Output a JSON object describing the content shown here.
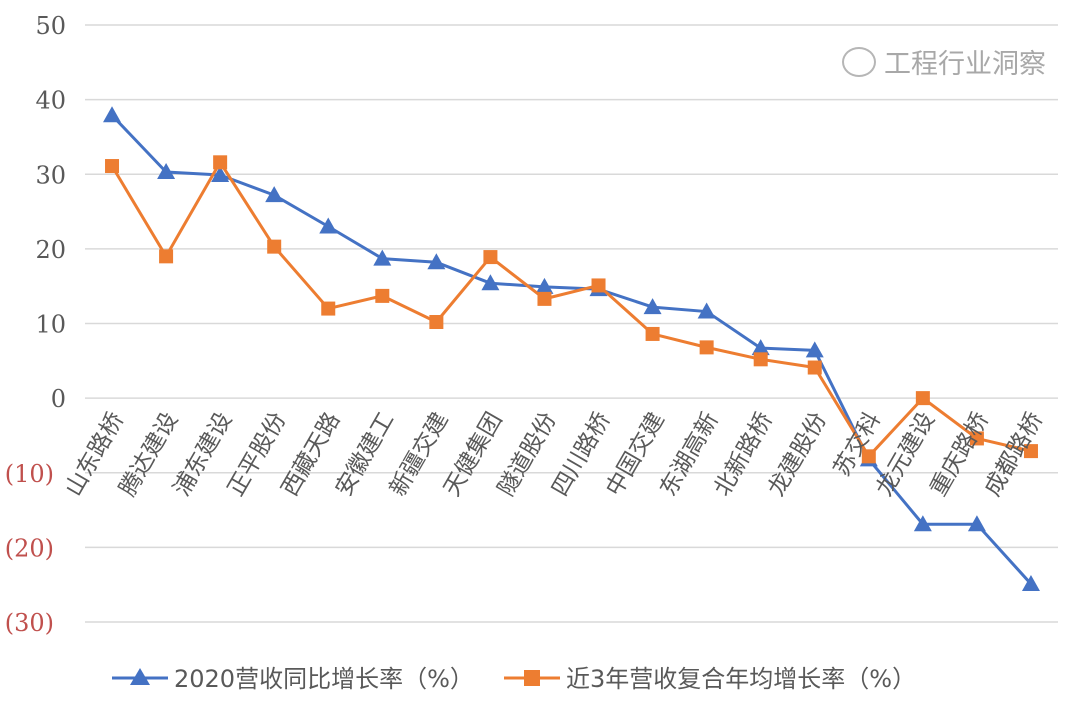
{
  "chart_data": {
    "type": "line",
    "title": "",
    "xlabel": "",
    "ylabel": "",
    "ylim": [
      -30,
      50
    ],
    "yticks": [
      50,
      40,
      30,
      20,
      10,
      0,
      -10,
      -20,
      -30
    ],
    "ytick_labels": [
      "50",
      "40",
      "30",
      "20",
      "10",
      "0",
      "(10)",
      "(20)",
      "(30)"
    ],
    "grid": true,
    "legend_position": "bottom",
    "categories": [
      "山东路桥",
      "腾达建设",
      "浦东建设",
      "正平股份",
      "西藏天路",
      "安徽建工",
      "新疆交建",
      "天健集团",
      "隧道股份",
      "四川路桥",
      "中国交建",
      "东湖高新",
      "北新路桥",
      "龙建股份",
      "苏交科",
      "龙元建设",
      "重庆路桥",
      "成都路桥"
    ],
    "series": [
      {
        "name": "2020营收同比增长率（%）",
        "color": "#4472c4",
        "marker": "triangle",
        "values": [
          37.9,
          30.3,
          29.9,
          27.2,
          23.0,
          18.7,
          18.2,
          15.4,
          14.9,
          14.6,
          12.2,
          11.6,
          6.7,
          6.4,
          -8.2,
          -16.9,
          -16.9,
          -24.9
        ]
      },
      {
        "name": "近3年营收复合年均增长率（%）",
        "color": "#ed7d31",
        "marker": "square",
        "values": [
          31.1,
          19.0,
          31.6,
          20.3,
          12.0,
          13.7,
          10.2,
          18.9,
          13.3,
          15.1,
          8.6,
          6.8,
          5.2,
          4.1,
          -7.8,
          0.0,
          -5.4,
          -7.1
        ]
      }
    ]
  },
  "watermark": {
    "text": "工程行业洞察",
    "icon": "wechat-icon"
  },
  "colors": {
    "grid": "#d9d9d9",
    "axis_text": "#595959",
    "negative_text": "#c0504d"
  }
}
